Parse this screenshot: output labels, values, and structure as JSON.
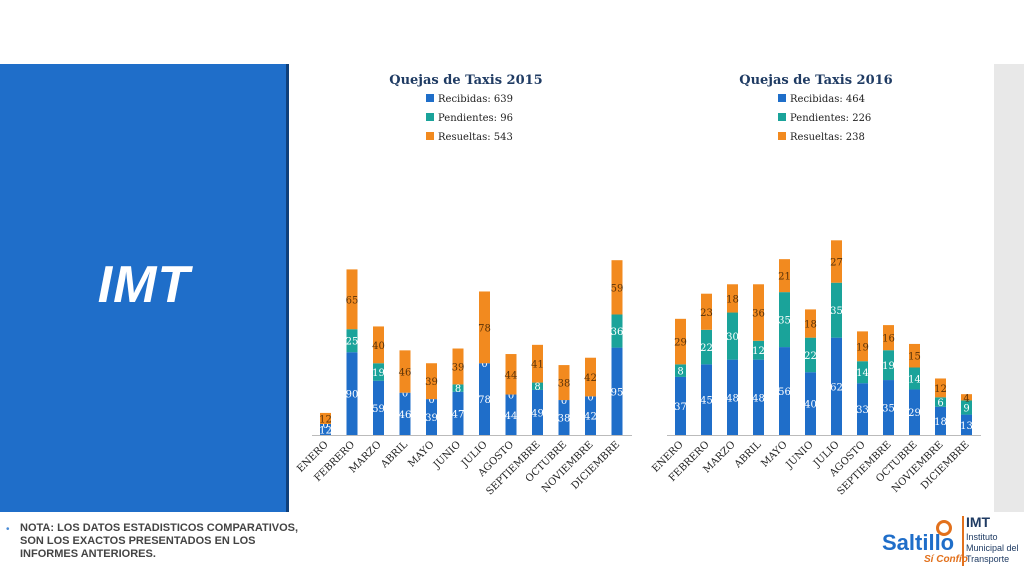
{
  "sidebar": {
    "title": "IMT"
  },
  "note": "NOTA: LOS DATOS ESTADISTICOS COMPARATIVOS, SON LOS EXACTOS PRESENTADOS EN LOS INFORMES ANTERIORES.",
  "logo": {
    "brand": "Saltillo",
    "tagline": "Sí Confío",
    "org": "IMT",
    "org_name": "Instituto Municipal del Transporte"
  },
  "colors": {
    "sidebar": "#1f6ec9",
    "recibidas": "#1f6ec9",
    "pendientes": "#1aa39a",
    "resueltas": "#f28a1f"
  },
  "chart_data": [
    {
      "type": "bar",
      "stacked": true,
      "title": "Quejas de Taxis 2015",
      "legend": [
        "Recibidas: 639",
        "Pendientes: 96",
        "Resueltas: 543"
      ],
      "categories": [
        "ENERO",
        "FEBRERO",
        "MARZO",
        "ABRIL",
        "MAYO",
        "JUNIO",
        "JULIO",
        "AGOSTO",
        "SEPTIEMBRE",
        "OCTUBRE",
        "NOVIEMBRE",
        "DICIEMBRE"
      ],
      "series": [
        {
          "name": "Recibidas",
          "values": [
            12,
            90,
            59,
            46,
            39,
            47,
            78,
            44,
            49,
            38,
            42,
            95
          ]
        },
        {
          "name": "Pendientes",
          "values": [
            0,
            25,
            19,
            0,
            0,
            8,
            0,
            0,
            8,
            0,
            0,
            36
          ]
        },
        {
          "name": "Resueltas",
          "values": [
            12,
            65,
            40,
            46,
            39,
            39,
            78,
            44,
            41,
            38,
            42,
            59
          ]
        }
      ]
    },
    {
      "type": "bar",
      "stacked": true,
      "title": "Quejas de Taxis 2016",
      "legend": [
        "Recibidas: 464",
        "Pendientes: 226",
        "Resueltas: 238"
      ],
      "categories": [
        "ENERO",
        "FEBRERO",
        "MARZO",
        "ABRIL",
        "MAYO",
        "JUNIO",
        "JULIO",
        "AGOSTO",
        "SEPTIEMBRE",
        "OCTUBRE",
        "NOVIEMBRE",
        "DICIEMBRE"
      ],
      "series": [
        {
          "name": "Recibidas",
          "values": [
            37,
            45,
            48,
            48,
            56,
            40,
            62,
            33,
            35,
            29,
            18,
            13
          ]
        },
        {
          "name": "Pendientes",
          "values": [
            8,
            22,
            30,
            12,
            35,
            22,
            35,
            14,
            19,
            14,
            6,
            9
          ]
        },
        {
          "name": "Resueltas",
          "values": [
            29,
            23,
            18,
            36,
            21,
            18,
            27,
            19,
            16,
            15,
            12,
            4
          ]
        }
      ]
    }
  ]
}
